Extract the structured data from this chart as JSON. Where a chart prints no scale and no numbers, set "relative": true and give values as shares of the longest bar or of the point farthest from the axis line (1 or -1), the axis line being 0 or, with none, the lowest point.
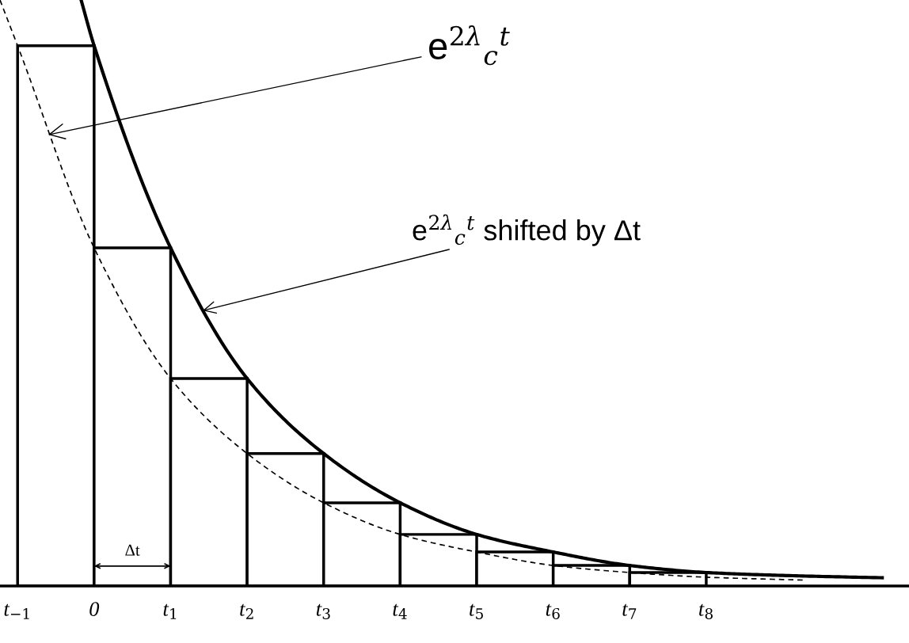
{
  "chart_data": {
    "type": "bar",
    "relative": true,
    "xlim": [
      -1.23,
      10.65
    ],
    "xticks": [
      {
        "value": -1,
        "label": "t$_{−1}$"
      },
      0,
      {
        "value": 1,
        "label": "t$_{1}$"
      },
      {
        "value": 2,
        "label": "t$_{2}$"
      },
      {
        "value": 3,
        "label": "t$_{3}$"
      },
      {
        "value": 4,
        "label": "t$_{4}$"
      },
      {
        "value": 5,
        "label": "t$_{5}$"
      },
      {
        "value": 6,
        "label": "t$_{6}$"
      },
      {
        "value": 7,
        "label": "t$_{7}$"
      },
      {
        "value": 8,
        "label": "t$_{8}$"
      }
    ],
    "series": [
      {
        "x": [
          -0.5,
          0.5,
          1.5,
          2.5,
          3.5,
          4.5,
          5.5,
          6.5,
          7.5
        ],
        "values": [
          0.922,
          0.577,
          0.354,
          0.226,
          0.142,
          0.088,
          0.058,
          0.035,
          0.023
        ],
        "color": "#ffffff"
      },
      {
        "type": "line",
        "line_style": "solid",
        "color": "#000000",
        "x": [
          -0.17,
          0,
          1,
          2,
          3,
          4,
          5,
          6,
          7,
          8,
          9,
          10.3
        ],
        "values": [
          1.0,
          0.922,
          0.577,
          0.354,
          0.226,
          0.142,
          0.088,
          0.058,
          0.035,
          0.023,
          0.018,
          0.014
        ]
      },
      {
        "type": "line",
        "line_style": "dashed",
        "color": "#000000",
        "x": [
          -1.23,
          -1,
          0,
          1,
          2,
          3,
          4,
          5,
          6,
          7,
          8,
          9.3
        ],
        "values": [
          1.0,
          0.922,
          0.577,
          0.354,
          0.226,
          0.142,
          0.088,
          0.058,
          0.035,
          0.023,
          0.015,
          0.01
        ]
      }
    ],
    "annotations": [
      {
        "text": "e$^{2λ}$$_{c}$$^{t}$",
        "x": -0.6,
        "y": 0.77
      },
      {
        "text": "e$^{2λ}$$_{c}$$^{t}$ shifted by Δt",
        "x": 1.42,
        "y": 0.47
      },
      "Δt"
    ],
    "grid": false,
    "legend": false
  }
}
